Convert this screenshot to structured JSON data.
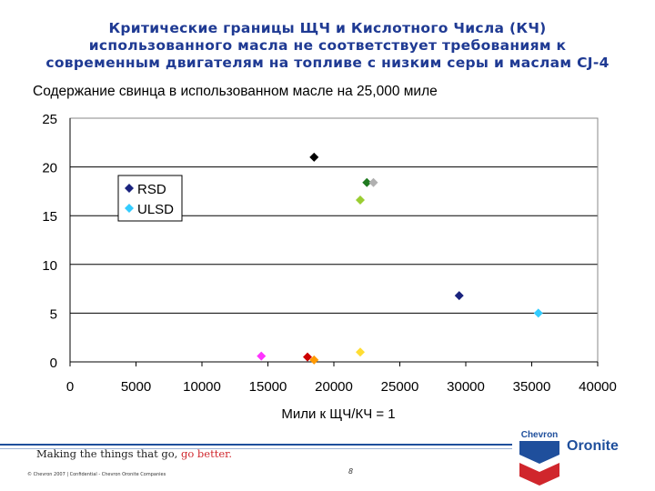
{
  "slide": {
    "title_lines": [
      "Критические границы ЩЧ и Кислотного Числа (КЧ)",
      "использованного масла не соответствует требованиям к",
      "современным двигателям на топливе с низким серы и маслам CJ-4"
    ]
  },
  "chart_data": {
    "type": "scatter",
    "title": "Содержание свинца в использованном масле на 25,000 миле",
    "xlabel": "Мили к ЩЧ/КЧ = 1",
    "ylabel": "",
    "xlim": [
      0,
      40000
    ],
    "ylim": [
      0,
      25
    ],
    "x_ticks": [
      "0",
      "5000",
      "10000",
      "15000",
      "20000",
      "25000",
      "30000",
      "35000",
      "40000"
    ],
    "y_ticks": [
      "0",
      "5",
      "10",
      "15",
      "20",
      "25"
    ],
    "grid": "horizontal",
    "legend_position": "upper-left",
    "series": [
      {
        "name": "RSD",
        "color": "#1a237e",
        "points": [
          {
            "x": 18500,
            "y": 21,
            "color": "#000000"
          },
          {
            "x": 22500,
            "y": 18.4,
            "color": "#1f7a1f"
          },
          {
            "x": 29500,
            "y": 6.8,
            "color": "#1a237e"
          },
          {
            "x": 18000,
            "y": 0.5,
            "color": "#cc0000"
          },
          {
            "x": 22000,
            "y": 16.6,
            "color": "#9acd32"
          }
        ]
      },
      {
        "name": "ULSD",
        "color": "#33ccff",
        "points": [
          {
            "x": 23000,
            "y": 18.4,
            "color": "#b0b0b0"
          },
          {
            "x": 35500,
            "y": 5,
            "color": "#33ccff"
          },
          {
            "x": 14500,
            "y": 0.6,
            "color": "#ff33ff"
          },
          {
            "x": 18500,
            "y": 0.2,
            "color": "#ff9900"
          },
          {
            "x": 22000,
            "y": 1,
            "color": "#ffdd33"
          }
        ]
      }
    ]
  },
  "footer": {
    "tagline_main": "Making the things that go, ",
    "tagline_accent": "go better.",
    "copyright": "© Chevron 2007 | Confidential - Chevron Oronite Companies",
    "page_number": "8",
    "brand_chevron": "Chevron",
    "brand_oronite": "Oronite",
    "accent_color": "#d0262c",
    "brand_color": "#1f4f9c"
  }
}
